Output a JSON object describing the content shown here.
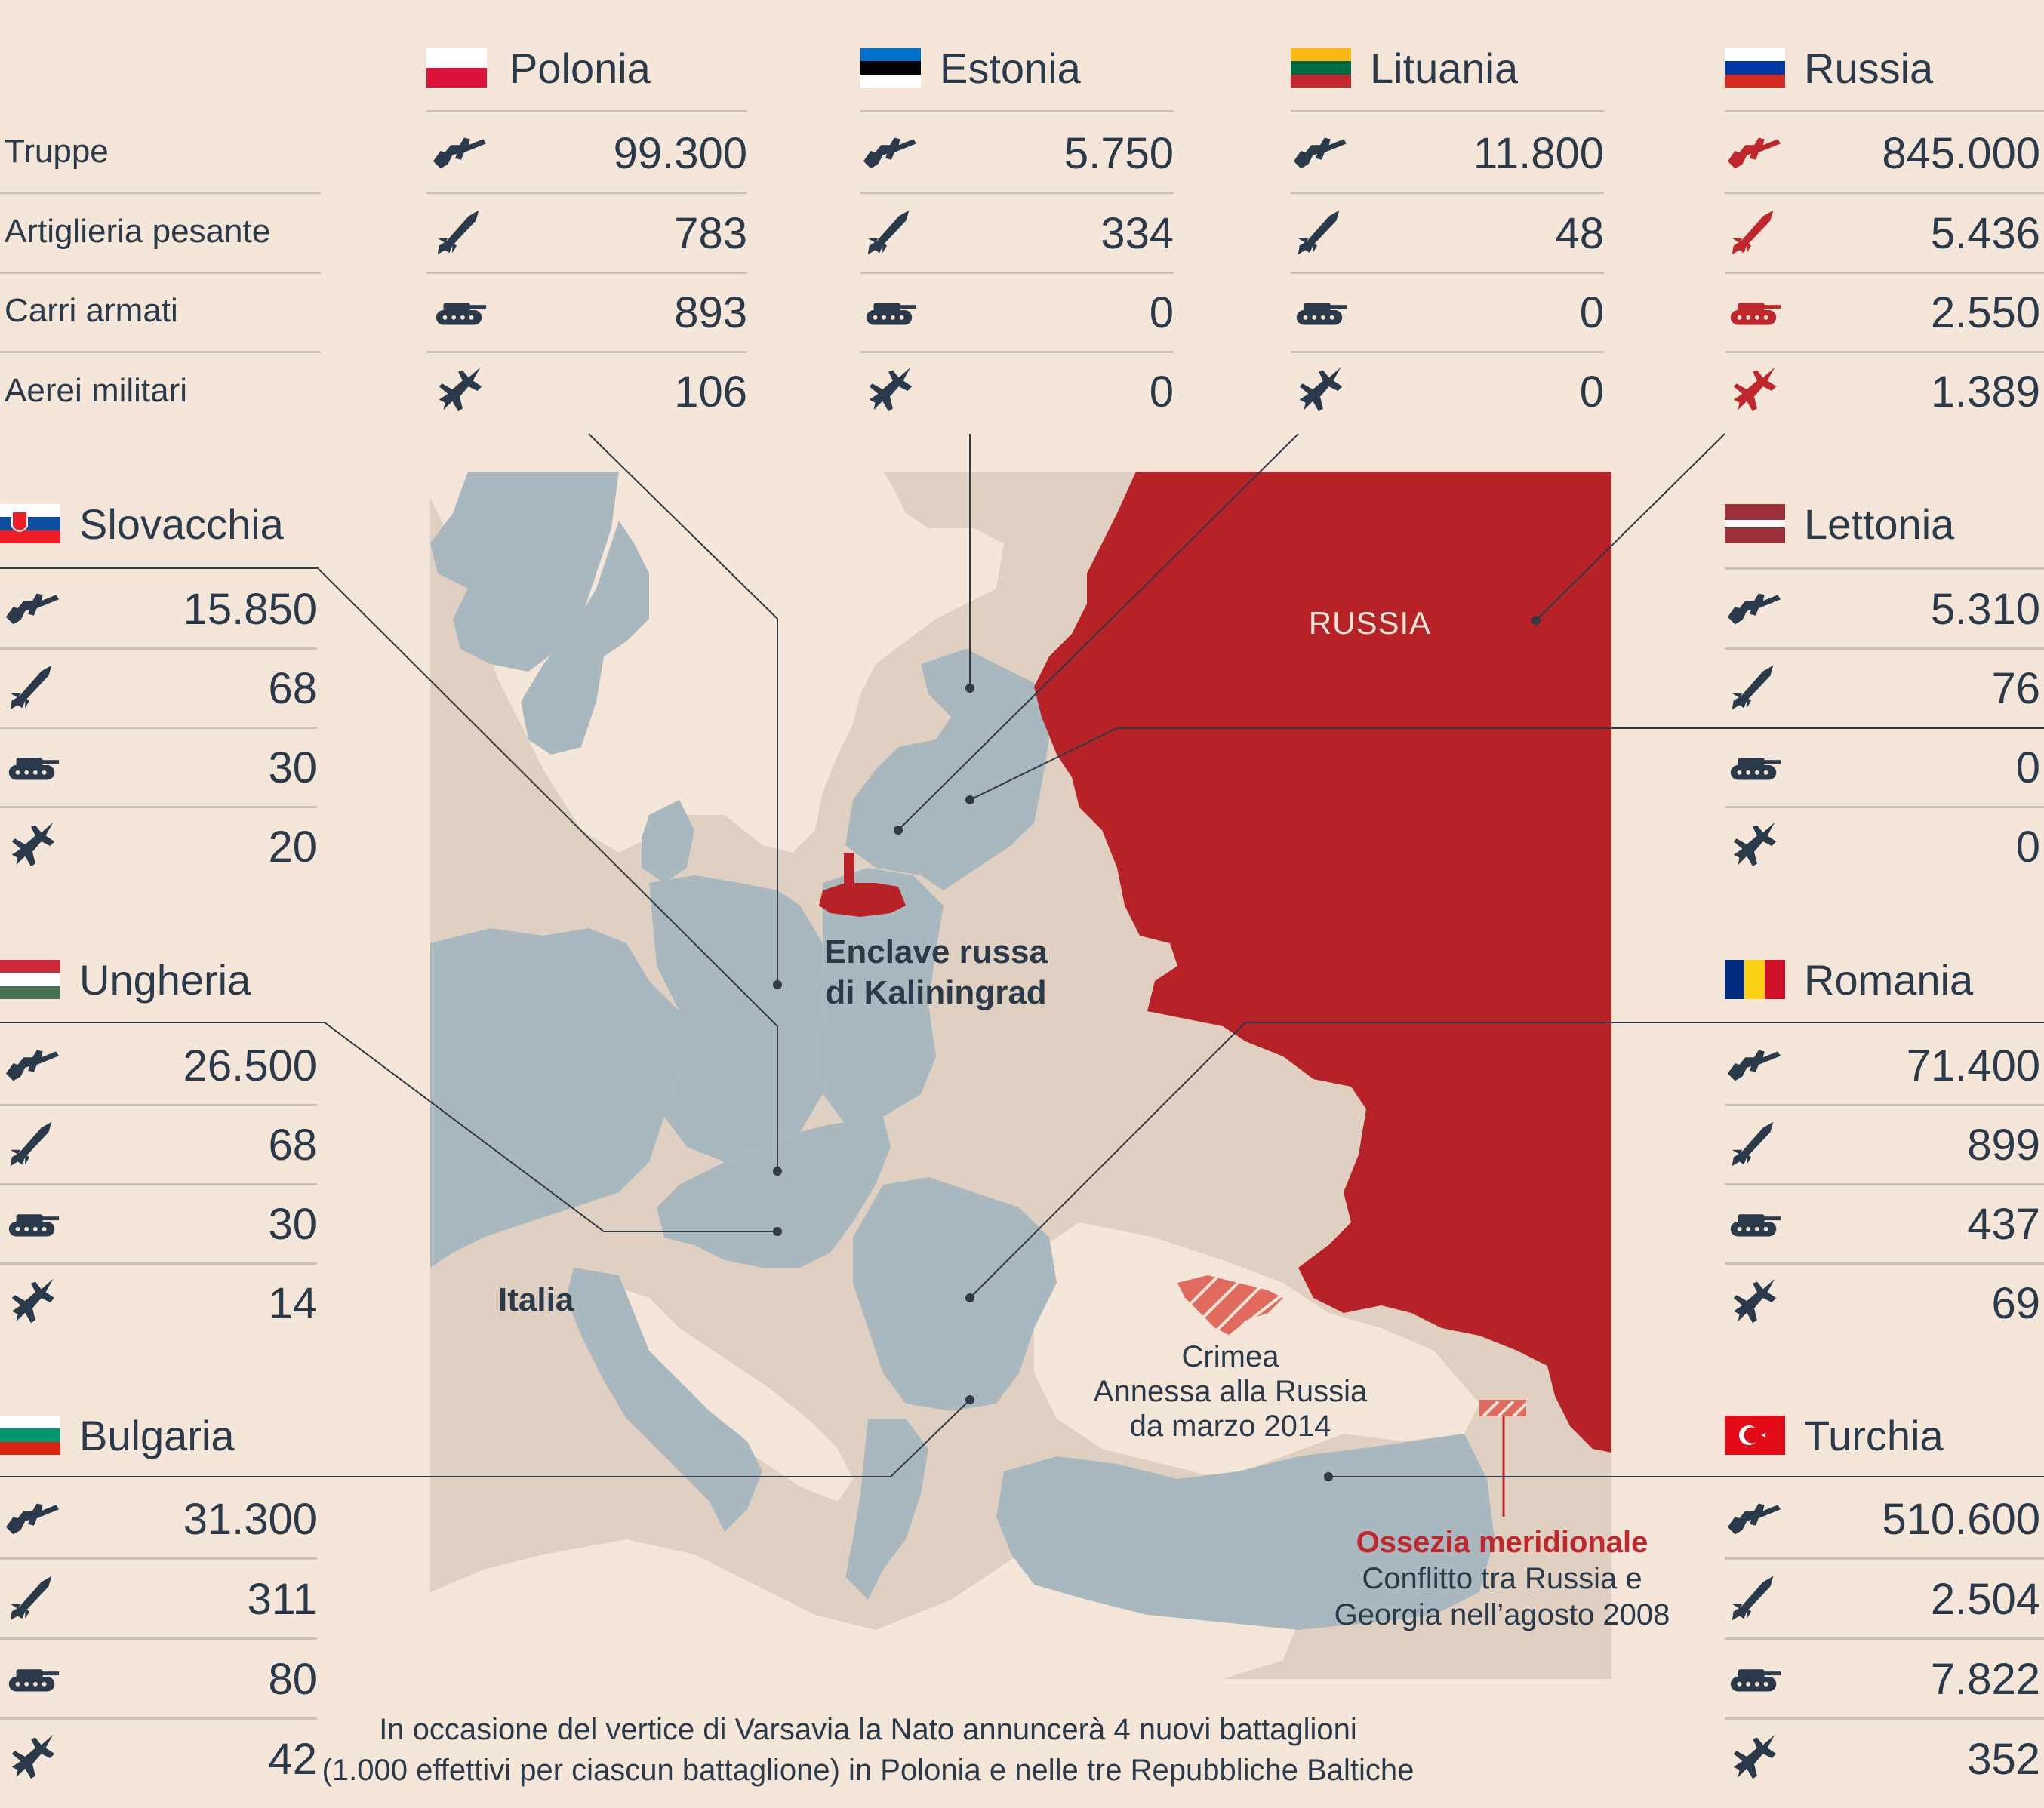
{
  "row_labels": [
    "Truppe",
    "Artiglieria pesante",
    "Carri armati",
    "Aerei militari"
  ],
  "countries": {
    "polonia": {
      "name": "Polonia",
      "values": [
        "99.300",
        "783",
        "893",
        "106"
      ]
    },
    "estonia": {
      "name": "Estonia",
      "values": [
        "5.750",
        "334",
        "0",
        "0"
      ]
    },
    "lituania": {
      "name": "Lituania",
      "values": [
        "11.800",
        "48",
        "0",
        "0"
      ]
    },
    "russia": {
      "name": "Russia",
      "values": [
        "845.000",
        "5.436",
        "2.550",
        "1.389"
      ]
    },
    "slovacchia": {
      "name": "Slovacchia",
      "values": [
        "15.850",
        "68",
        "30",
        "20"
      ]
    },
    "ungheria": {
      "name": "Ungheria",
      "values": [
        "26.500",
        "68",
        "30",
        "14"
      ]
    },
    "bulgaria": {
      "name": "Bulgaria",
      "values": [
        "31.300",
        "311",
        "80",
        "42"
      ]
    },
    "lettonia": {
      "name": "Lettonia",
      "values": [
        "5.310",
        "76",
        "0",
        "0"
      ]
    },
    "romania": {
      "name": "Romania",
      "values": [
        "71.400",
        "899",
        "437",
        "69"
      ]
    },
    "turchia": {
      "name": "Turchia",
      "values": [
        "510.600",
        "2.504",
        "7.822",
        "352"
      ]
    }
  },
  "map_labels": {
    "russia": "RUSSIA",
    "kaliningrad_1": "Enclave russa",
    "kaliningrad_2": "di Kaliningrad",
    "italia": "Italia",
    "crimea_1": "Crimea",
    "crimea_2": "Annessa alla Russia",
    "crimea_3": "da marzo 2014",
    "ossezia_title": "Ossezia meridionale",
    "ossezia_1": "Conflitto tra Russia e",
    "ossezia_2": "Georgia nell’agosto 2008"
  },
  "footer": {
    "line1": "In occasione del vertice di Varsavia la Nato annuncerà 4 nuovi battaglioni",
    "line2": "(1.000 effettivi per ciascun battaglione) in Polonia e nelle tre Repubbliche Baltiche"
  },
  "colors": {
    "background": "#f4e6d8",
    "nato_grey": "#a9b7bf",
    "other_beige": "#dfd0c1",
    "russia_red": "#b72227",
    "icon_dark": "#2a3a4a",
    "icon_red": "#c0272d"
  },
  "icons": [
    "rifle-icon",
    "missile-icon",
    "tank-icon",
    "jet-icon"
  ]
}
